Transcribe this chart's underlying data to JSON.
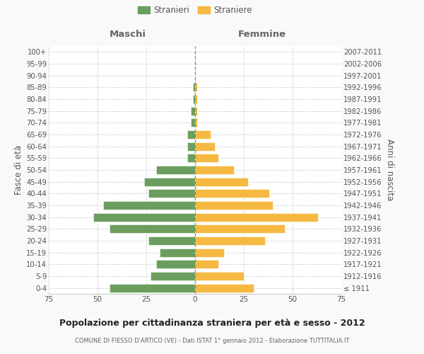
{
  "age_groups": [
    "100+",
    "95-99",
    "90-94",
    "85-89",
    "80-84",
    "75-79",
    "70-74",
    "65-69",
    "60-64",
    "55-59",
    "50-54",
    "45-49",
    "40-44",
    "35-39",
    "30-34",
    "25-29",
    "20-24",
    "15-19",
    "10-14",
    "5-9",
    "0-4"
  ],
  "birth_years": [
    "≤ 1911",
    "1912-1916",
    "1917-1921",
    "1922-1926",
    "1927-1931",
    "1932-1936",
    "1937-1941",
    "1942-1946",
    "1947-1951",
    "1952-1956",
    "1957-1961",
    "1962-1966",
    "1967-1971",
    "1972-1976",
    "1977-1981",
    "1982-1986",
    "1987-1991",
    "1992-1996",
    "1997-2001",
    "2002-2006",
    "2007-2011"
  ],
  "maschi": [
    0,
    0,
    0,
    1,
    1,
    2,
    2,
    4,
    4,
    4,
    20,
    26,
    24,
    47,
    52,
    44,
    24,
    18,
    20,
    23,
    44
  ],
  "straniere": [
    0,
    0,
    0,
    1,
    1,
    1,
    1,
    8,
    10,
    12,
    20,
    27,
    38,
    40,
    63,
    46,
    36,
    15,
    12,
    25,
    30
  ],
  "color_maschi": "#6b9e5e",
  "color_straniere": "#f5b942",
  "color_grid": "#cccccc",
  "color_center_line": "#999966",
  "xlim": 75,
  "title": "Popolazione per cittadinanza straniera per età e sesso - 2012",
  "subtitle": "COMUNE DI FIESSO D'ARTICO (VE) - Dati ISTAT 1° gennaio 2012 - Elaborazione TUTTITALIA.IT",
  "ylabel_left": "Fasce di età",
  "ylabel_right": "Anni di nascita",
  "xlabel_maschi": "Maschi",
  "xlabel_femmine": "Femmine",
  "legend_maschi": "Stranieri",
  "legend_straniere": "Straniere",
  "background_color": "#f9f9f9",
  "plot_bg_color": "#ffffff"
}
